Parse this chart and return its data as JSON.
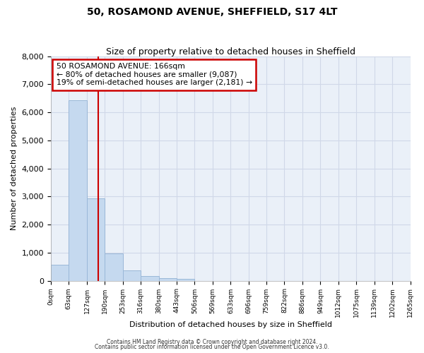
{
  "title": "50, ROSAMOND AVENUE, SHEFFIELD, S17 4LT",
  "subtitle": "Size of property relative to detached houses in Sheffield",
  "xlabel": "Distribution of detached houses by size in Sheffield",
  "ylabel": "Number of detached properties",
  "bin_edges": [
    0,
    63,
    127,
    190,
    253,
    316,
    380,
    443,
    506,
    569,
    633,
    696,
    759,
    822,
    886,
    949,
    1012,
    1075,
    1139,
    1202,
    1265
  ],
  "bin_labels": [
    "0sqm",
    "63sqm",
    "127sqm",
    "190sqm",
    "253sqm",
    "316sqm",
    "380sqm",
    "443sqm",
    "506sqm",
    "569sqm",
    "633sqm",
    "696sqm",
    "759sqm",
    "822sqm",
    "886sqm",
    "949sqm",
    "1012sqm",
    "1075sqm",
    "1139sqm",
    "1202sqm",
    "1265sqm"
  ],
  "bar_heights": [
    560,
    6430,
    2930,
    980,
    370,
    175,
    100,
    75,
    0,
    0,
    0,
    0,
    0,
    0,
    0,
    0,
    0,
    0,
    0,
    0
  ],
  "bar_color": "#c5d9ef",
  "bar_edge_color": "#9ab8d8",
  "vline_x": 166,
  "vline_color": "#cc0000",
  "annotation_line1": "50 ROSAMOND AVENUE: 166sqm",
  "annotation_line2": "← 80% of detached houses are smaller (9,087)",
  "annotation_line3": "19% of semi-detached houses are larger (2,181) →",
  "annotation_box_color": "white",
  "annotation_box_edge_color": "#cc0000",
  "ylim": [
    0,
    8000
  ],
  "yticks": [
    0,
    1000,
    2000,
    3000,
    4000,
    5000,
    6000,
    7000,
    8000
  ],
  "grid_color": "#d0d8e8",
  "bg_color": "#eaf0f8",
  "footer_line1": "Contains HM Land Registry data © Crown copyright and database right 2024.",
  "footer_line2": "Contains public sector information licensed under the Open Government Licence v3.0."
}
